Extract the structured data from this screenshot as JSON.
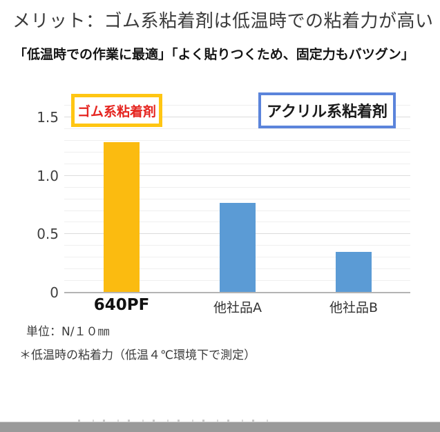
{
  "page": {
    "title": "メリット：ゴム系粘着剤は低温時での粘着力が高い",
    "subtitle": "「低温時での作業に最適」「よく貼りつくため、固定力もバツグン」"
  },
  "legend": {
    "rubber": {
      "label": "ゴム系粘着剤",
      "border_color": "#ffc613",
      "text_color": "#e52520"
    },
    "acrylic": {
      "label": "アクリル系粘着剤",
      "border_color": "#5b84db",
      "text_color": "#1a1a1a"
    }
  },
  "chart_data": {
    "type": "bar",
    "categories": [
      "640PF",
      "他社品A",
      "他社品B"
    ],
    "values": [
      1.28,
      0.76,
      0.34
    ],
    "bar_colors": [
      "#fbbb10",
      "#5b9bd5",
      "#5b9bd5"
    ],
    "highlight_category_index": 0,
    "title": "",
    "xlabel": "",
    "ylabel": "",
    "ylim": [
      0,
      1.68
    ],
    "yticks": [
      0,
      0.5,
      1.0,
      1.5
    ],
    "ytick_labels": [
      "0",
      "0.5",
      "1.0",
      "1.5"
    ],
    "minor_grid_step": 0.1,
    "grid": "on",
    "legend_position": "top",
    "series_legend": [
      "ゴム系粘着剤",
      "アクリル系粘着剤"
    ],
    "unit_note": "単位：N/１０㎜",
    "footnote": "＊低温時の粘着力（低温４℃環境下で測定）"
  }
}
